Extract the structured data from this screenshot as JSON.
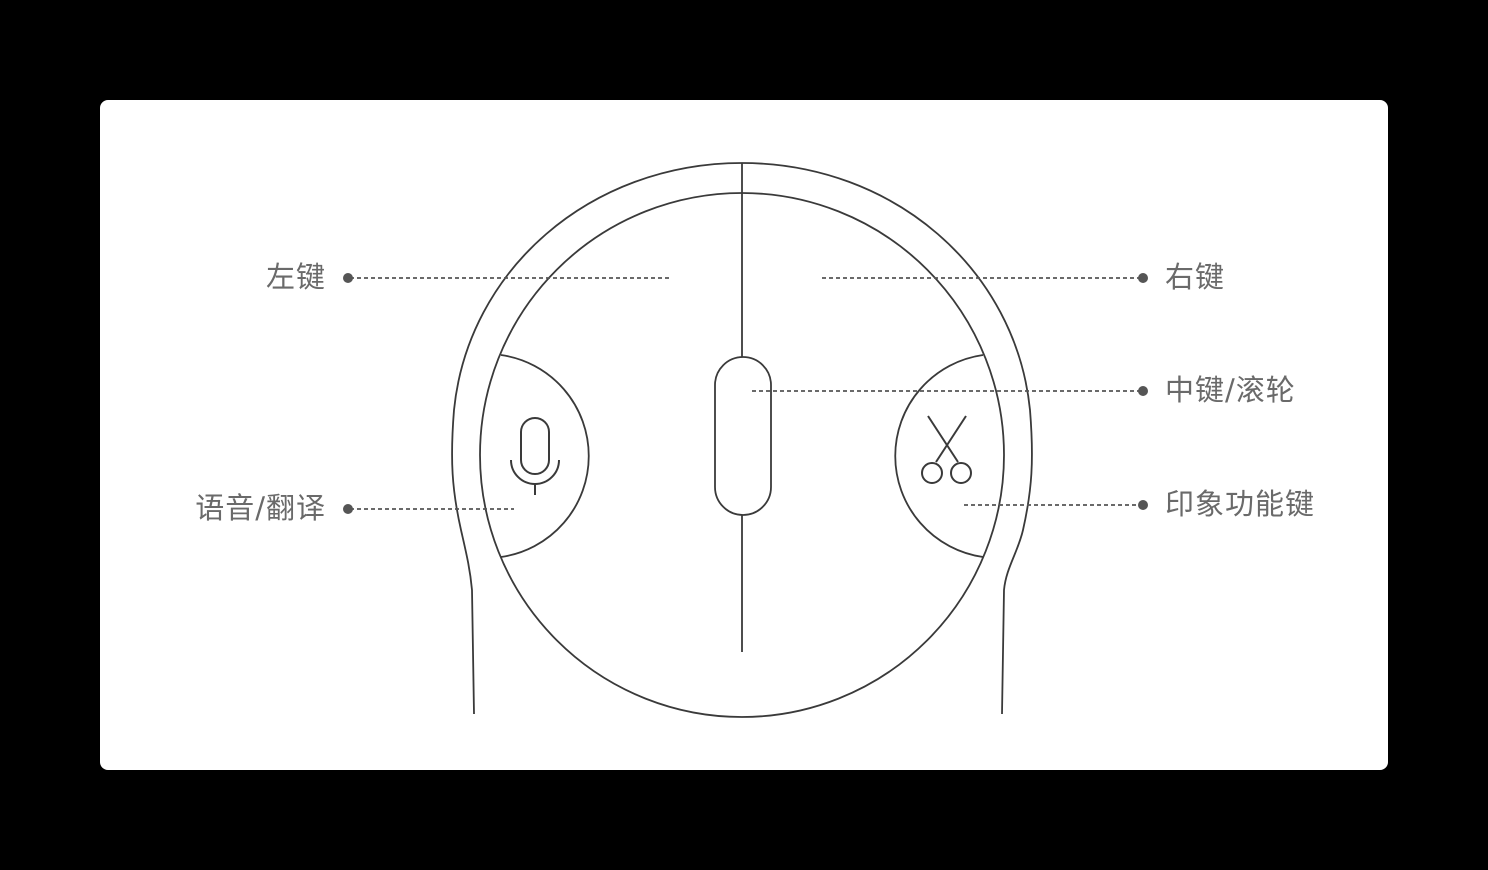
{
  "colors": {
    "background": "#000000",
    "card": "#ffffff",
    "line": "#3a3a3a",
    "leader": "#555555",
    "label": "#6a6a6a"
  },
  "labels": {
    "left_button": "左键",
    "right_button": "右键",
    "middle_button": "中键/滚轮",
    "voice_translate": "语音/翻译",
    "impression_key": "印象功能键"
  },
  "icons": {
    "voice": "microphone-icon",
    "impression": "scissors-icon"
  }
}
